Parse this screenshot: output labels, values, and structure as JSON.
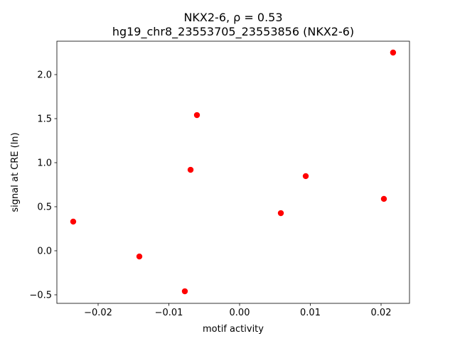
{
  "chart_data": {
    "type": "scatter",
    "title": "NKX2-6, ρ = 0.53",
    "subtitle": "hg19_chr8_23553705_23553856 (NKX2-6)",
    "xlabel": "motif activity",
    "ylabel": "signal at CRE (ln)",
    "color": "#ff0000",
    "x": [
      -0.02352,
      -0.01417,
      -0.00774,
      -0.00693,
      -0.00603,
      0.00583,
      0.00935,
      0.0204,
      0.0217
    ],
    "values": [
      0.331,
      -0.065,
      -0.46,
      0.919,
      1.54,
      0.427,
      0.847,
      0.589,
      2.25
    ],
    "xlim": [
      -0.02583,
      0.02402
    ],
    "ylim": [
      -0.597,
      2.379
    ],
    "xticks": [
      {
        "value": -0.02,
        "label": "−0.02"
      },
      {
        "value": -0.01,
        "label": "−0.01"
      },
      {
        "value": 0,
        "label": "0.00"
      },
      0.01,
      0.02
    ],
    "yticks": [
      {
        "value": -0.5,
        "label": "−0.5"
      },
      {
        "value": 0,
        "label": "0.0"
      },
      0.5,
      {
        "value": 1,
        "label": "1.0"
      },
      1.5,
      {
        "value": 2,
        "label": "2.0"
      }
    ],
    "grid": false
  }
}
